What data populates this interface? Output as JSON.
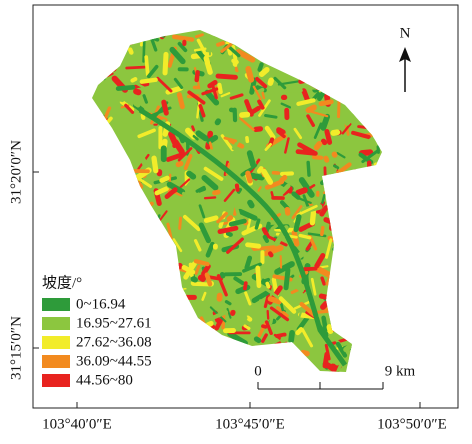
{
  "map": {
    "legend": {
      "title": "坡度/°",
      "items": [
        {
          "label": "0~16.94",
          "color": "#2e9b3a"
        },
        {
          "label": "16.95~27.61",
          "color": "#8cc63f"
        },
        {
          "label": "27.62~36.08",
          "color": "#f2ec2a"
        },
        {
          "label": "36.09~44.55",
          "color": "#f28a1f"
        },
        {
          "label": "44.56~80",
          "color": "#e8231f"
        }
      ]
    },
    "north": "N",
    "scale_bar": {
      "start": "0",
      "end": "9 km"
    },
    "x_labels": [
      "103°40′0″E",
      "103°45′0″E",
      "103°50′0″E"
    ],
    "y_labels": [
      "31°20′0″N",
      "31°15′0″N"
    ]
  }
}
